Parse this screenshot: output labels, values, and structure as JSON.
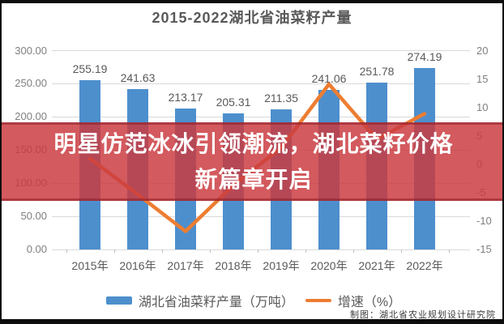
{
  "title": "2015-2022湖北省油菜籽产量",
  "overlay": {
    "line1": "明星仿范冰冰引领潮流，湖北菜籽价格",
    "line2": "新篇章开启",
    "bg_color": "#cb3a3f",
    "text_color": "#ffffff"
  },
  "credit": "制图：湖北省农业规划设计研究院",
  "colors": {
    "bar": "#4d8fcd",
    "line": "#ed7d31",
    "grid": "#d9d9d9",
    "axis_text": "#7f7f7f",
    "label_text": "#595959",
    "title_text": "#595959",
    "frame_bar": "#0d0d0d"
  },
  "chart_data": {
    "type": "bar",
    "title": "2015-2022湖北省油菜籽产量",
    "categories": [
      "2015年",
      "2016年",
      "2017年",
      "2018年",
      "2019年",
      "2020年",
      "2021年",
      "2022年"
    ],
    "series": [
      {
        "name": "湖北省油菜籽产量（万吨）",
        "type": "bar",
        "axis": "left",
        "color": "#4d8fcd",
        "values": [
          255.19,
          241.63,
          213.17,
          205.31,
          211.35,
          241.06,
          251.78,
          274.19
        ],
        "labels": [
          "255.19",
          "241.63",
          "213.17",
          "205.31",
          "211.35",
          "241.06",
          "251.78",
          "274.19"
        ]
      },
      {
        "name": "增速（%）",
        "type": "line",
        "axis": "right",
        "color": "#ed7d31",
        "values": [
          1.0,
          -5.3,
          -11.8,
          -3.7,
          2.9,
          14.1,
          4.4,
          8.9
        ]
      }
    ],
    "left_axis": {
      "min": 0,
      "max": 300,
      "ticks": [
        "300.00",
        "250.00",
        "200.00",
        "150.00",
        "100.00",
        "50.00",
        "0.00"
      ]
    },
    "right_axis": {
      "min": -15,
      "max": 20,
      "ticks": [
        "20",
        "15",
        "10",
        "5",
        "0",
        "-5",
        "-10",
        "-15"
      ]
    },
    "grid": true,
    "legend_position": "bottom"
  }
}
